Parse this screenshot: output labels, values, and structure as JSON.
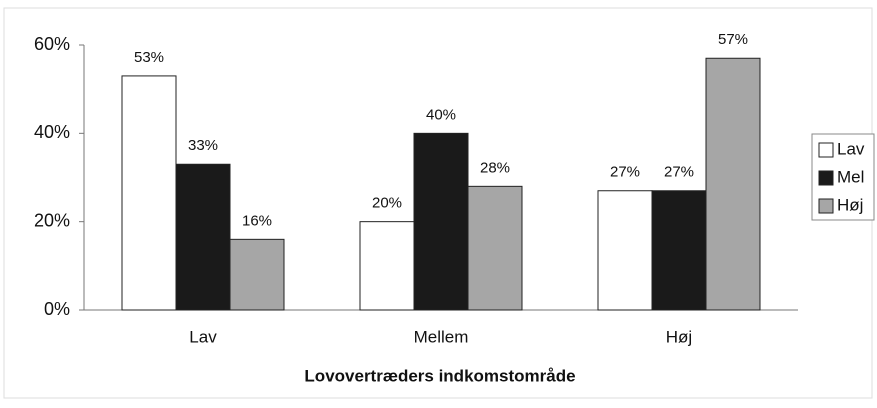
{
  "chart_data": {
    "type": "bar",
    "xlabel": "Lovovertræders indkomstområde",
    "categories": [
      "Lav",
      "Mellem",
      "Høj"
    ],
    "series": [
      {
        "name": "Lav",
        "color": "#ffffff",
        "values": [
          53,
          20,
          27
        ],
        "value_labels": [
          "53%",
          "20%",
          "27%"
        ]
      },
      {
        "name": "Mel",
        "color": "#1a1a1a",
        "values": [
          33,
          40,
          27
        ],
        "value_labels": [
          "33%",
          "40%",
          "27%"
        ]
      },
      {
        "name": "Høj",
        "color": "#a6a6a6",
        "values": [
          16,
          28,
          57
        ],
        "value_labels": [
          "16%",
          "28%",
          "57%"
        ]
      }
    ],
    "ylim": [
      0,
      60
    ],
    "yticks": [
      {
        "value": 0,
        "label": "0%"
      },
      {
        "value": 20,
        "label": "20%"
      },
      {
        "value": 40,
        "label": "40%"
      },
      {
        "value": 60,
        "label": "60%"
      }
    ],
    "grid": false,
    "legend": "right"
  }
}
